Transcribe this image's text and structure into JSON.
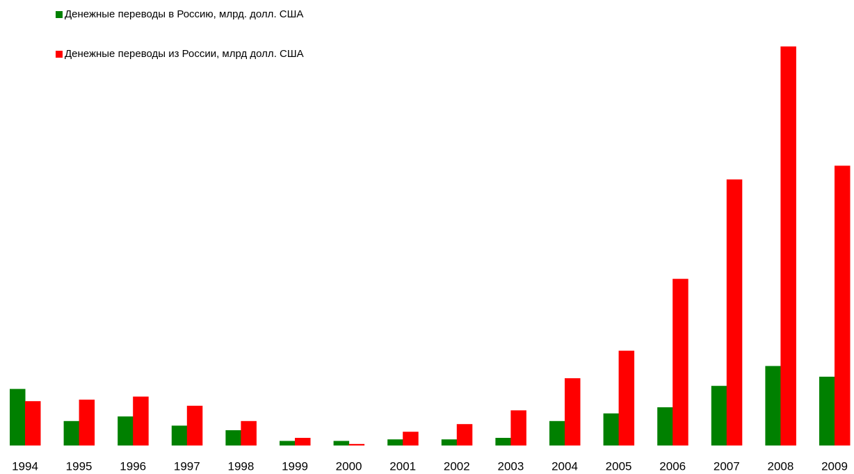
{
  "chart_data": {
    "type": "bar",
    "categories": [
      "1994",
      "1995",
      "1996",
      "1997",
      "1998",
      "1999",
      "2000",
      "2001",
      "2002",
      "2003",
      "2004",
      "2005",
      "2006",
      "2007",
      "2008",
      "2009"
    ],
    "series": [
      {
        "name": "Денежные переводы в Россию, млрд. долл. США",
        "color": "#008000",
        "values": [
          3.7,
          1.6,
          1.9,
          1.3,
          1.0,
          0.3,
          0.3,
          0.4,
          0.4,
          0.5,
          1.6,
          2.1,
          2.5,
          3.9,
          5.2,
          4.5
        ]
      },
      {
        "name": "Денежные переводы из России, млрд долл. США",
        "color": "#ff0000",
        "values": [
          2.9,
          3.0,
          3.2,
          2.6,
          1.6,
          0.5,
          0.1,
          0.9,
          1.4,
          2.3,
          4.4,
          6.2,
          10.9,
          17.4,
          26.1,
          18.3
        ]
      }
    ],
    "ylim": [
      0,
      27
    ]
  }
}
